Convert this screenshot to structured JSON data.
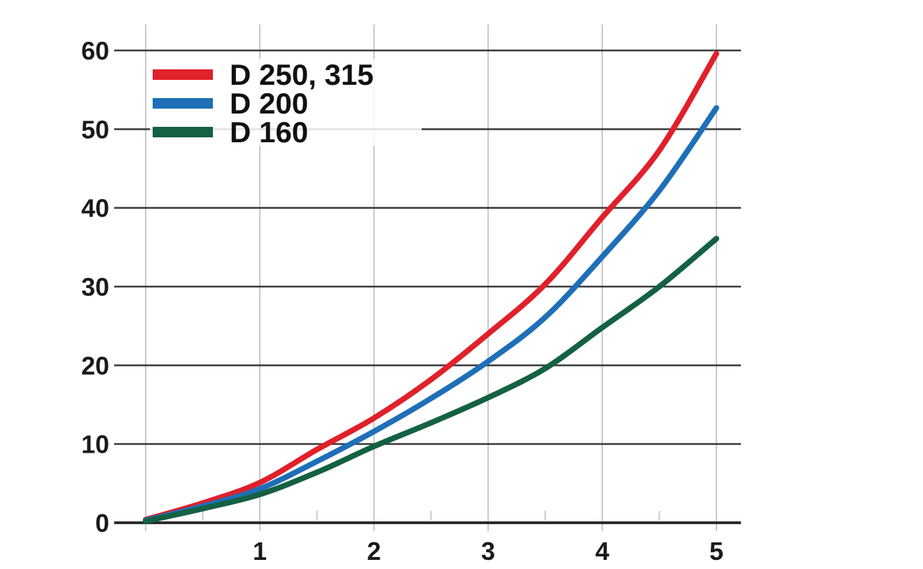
{
  "chart_data": {
    "type": "line",
    "title": "",
    "xlabel": "",
    "ylabel": "",
    "x": [
      0,
      0.5,
      1,
      1.5,
      2,
      2.5,
      3,
      3.5,
      4,
      4.5,
      5
    ],
    "series": [
      {
        "name": "D 250, 315",
        "color": "#e0202a",
        "values": [
          0.4,
          2.5,
          5.1,
          9.3,
          13.3,
          18.2,
          24.0,
          30.3,
          38.8,
          47.3,
          59.6
        ]
      },
      {
        "name": "D 200",
        "color": "#1e6fb7",
        "values": [
          0.3,
          2.1,
          4.3,
          7.8,
          11.6,
          15.8,
          20.5,
          26.1,
          33.8,
          42.2,
          52.7
        ]
      },
      {
        "name": "D 160",
        "color": "#146142",
        "values": [
          0.2,
          1.8,
          3.6,
          6.4,
          9.7,
          12.7,
          15.9,
          19.6,
          24.8,
          30.0,
          36.1
        ]
      }
    ],
    "xlim": [
      0,
      5
    ],
    "ylim": [
      0,
      60
    ],
    "x_ticks": [
      1,
      2,
      3,
      4,
      5
    ],
    "x_tick_labels": [
      "1",
      "2",
      "3",
      "4",
      "5"
    ],
    "x_minor_ticks": [
      0.5,
      1.5,
      2.5,
      3.5,
      4.5
    ],
    "y_ticks": [
      0,
      10,
      20,
      30,
      40,
      50,
      60
    ],
    "y_tick_labels": [
      "0",
      "10",
      "20",
      "30",
      "40",
      "50",
      "60"
    ],
    "grid": {
      "horizontal": true,
      "vertical": true
    },
    "legend_position": "top-left",
    "colors": {
      "grid_dark": "#383838",
      "grid_light": "#c8c8cc",
      "axis": "#2d2d2d",
      "tick_text": "#1a1a1a",
      "background": "#ffffff"
    }
  }
}
